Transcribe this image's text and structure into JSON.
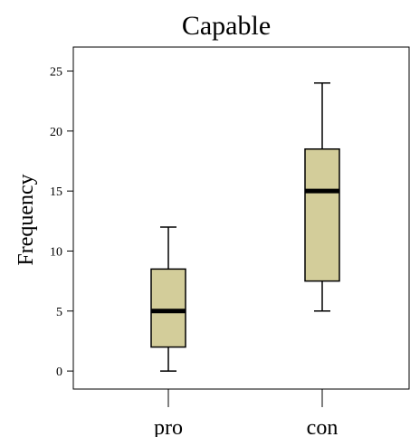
{
  "chart_data": {
    "type": "boxplot",
    "title": "Capable",
    "xlabel": "",
    "ylabel": "Frequency",
    "ylim": [
      -1.5,
      27
    ],
    "yticks": [
      0,
      5,
      10,
      15,
      20,
      25
    ],
    "grid": false,
    "box_color": "#d3cd9a",
    "categories": [
      "pro",
      "con"
    ],
    "boxes": [
      {
        "category": "pro",
        "min": 0,
        "q1": 2,
        "median": 5,
        "q3": 8.5,
        "max": 12
      },
      {
        "category": "con",
        "min": 5,
        "q1": 7.5,
        "median": 15,
        "q3": 18.5,
        "max": 24
      }
    ]
  }
}
